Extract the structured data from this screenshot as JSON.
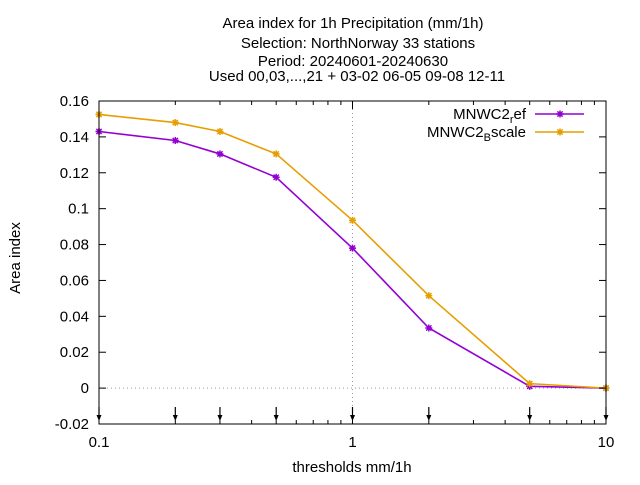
{
  "chart_data": {
    "type": "line",
    "title_lines": [
      "Area index  for 1h Precipitation (mm/1h)",
      "Selection: NorthNorway     33 stations",
      "Period: 20240601-20240630",
      "Used 00,03,...,21 + 03-02 06-05 09-08 12-11"
    ],
    "xlabel": "thresholds mm/1h",
    "ylabel": "Area index",
    "x_scale": "log",
    "xlim": [
      0.1,
      10
    ],
    "ylim": [
      -0.02,
      0.16
    ],
    "x_ticks": [
      {
        "value": 0.1,
        "label": "0.1"
      },
      {
        "value": 1,
        "label": "1"
      },
      {
        "value": 10,
        "label": "10"
      }
    ],
    "y_ticks": [
      {
        "value": -0.02,
        "label": "-0.02"
      },
      {
        "value": 0,
        "label": "0"
      },
      {
        "value": 0.02,
        "label": "0.02"
      },
      {
        "value": 0.04,
        "label": "0.04"
      },
      {
        "value": 0.06,
        "label": "0.06"
      },
      {
        "value": 0.08,
        "label": "0.08"
      },
      {
        "value": 0.1,
        "label": "0.1"
      },
      {
        "value": 0.12,
        "label": "0.12"
      },
      {
        "value": 0.14,
        "label": "0.14"
      },
      {
        "value": 0.16,
        "label": "0.16"
      }
    ],
    "threshold_markers": [
      0.1,
      0.2,
      0.3,
      0.5,
      1,
      2,
      5,
      10
    ],
    "grid": "x=1 and y=0 dotted",
    "legend_position": "top-right",
    "x": [
      0.1,
      0.2,
      0.3,
      0.5,
      1,
      2,
      5,
      10
    ],
    "series": [
      {
        "name": "MNWC2",
        "name_sub": "r",
        "name_rest": "ef",
        "color": "#9400d3",
        "marker": "star",
        "values": [
          0.143,
          0.138,
          0.1305,
          0.1175,
          0.078,
          0.0335,
          0.001,
          0.0
        ]
      },
      {
        "name": "MNWC2",
        "name_sub": "B",
        "name_rest": "scale",
        "color": "#e69f00",
        "marker": "star",
        "values": [
          0.1525,
          0.148,
          0.143,
          0.1305,
          0.0935,
          0.0515,
          0.0025,
          0.0
        ]
      }
    ]
  }
}
